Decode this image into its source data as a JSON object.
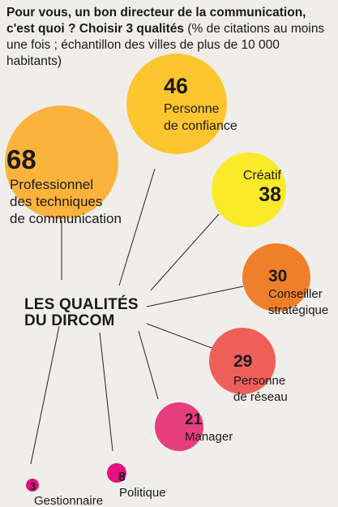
{
  "intro": {
    "bold": "Pour vous, un bon directeur de la communication, c'est quoi ? Choisir 3 qualités",
    "normal": "(% de citations au moins une fois ; échantillon des villes de plus de 10 000 habitants)"
  },
  "center_title": [
    "LES QUALITÉS",
    "DU DIRCOM"
  ],
  "chart_data": {
    "type": "bubble",
    "title": "LES QUALITÉS DU DIRCOM",
    "unit": "% de citations au moins une fois",
    "items": [
      {
        "label": [
          "Professionnel",
          "des techniques",
          "de communication"
        ],
        "value": 68,
        "color": "#fbb33b"
      },
      {
        "label": [
          "Personne",
          "de confiance"
        ],
        "value": 46,
        "color": "#fdc62e"
      },
      {
        "label": [
          "Créatif"
        ],
        "value": 38,
        "color": "#fbea2a"
      },
      {
        "label": [
          "Conseiller",
          "stratégique"
        ],
        "value": 30,
        "color": "#f07f2c"
      },
      {
        "label": [
          "Personne",
          "de réseau"
        ],
        "value": 29,
        "color": "#ef5f59"
      },
      {
        "label": [
          "Manager"
        ],
        "value": 21,
        "color": "#e63d7d"
      },
      {
        "label": [
          "Politique"
        ],
        "value": 8,
        "color": "#e4117f"
      },
      {
        "label": [
          "Gestionnaire"
        ],
        "value": 3,
        "color": "#e2127c"
      }
    ]
  }
}
